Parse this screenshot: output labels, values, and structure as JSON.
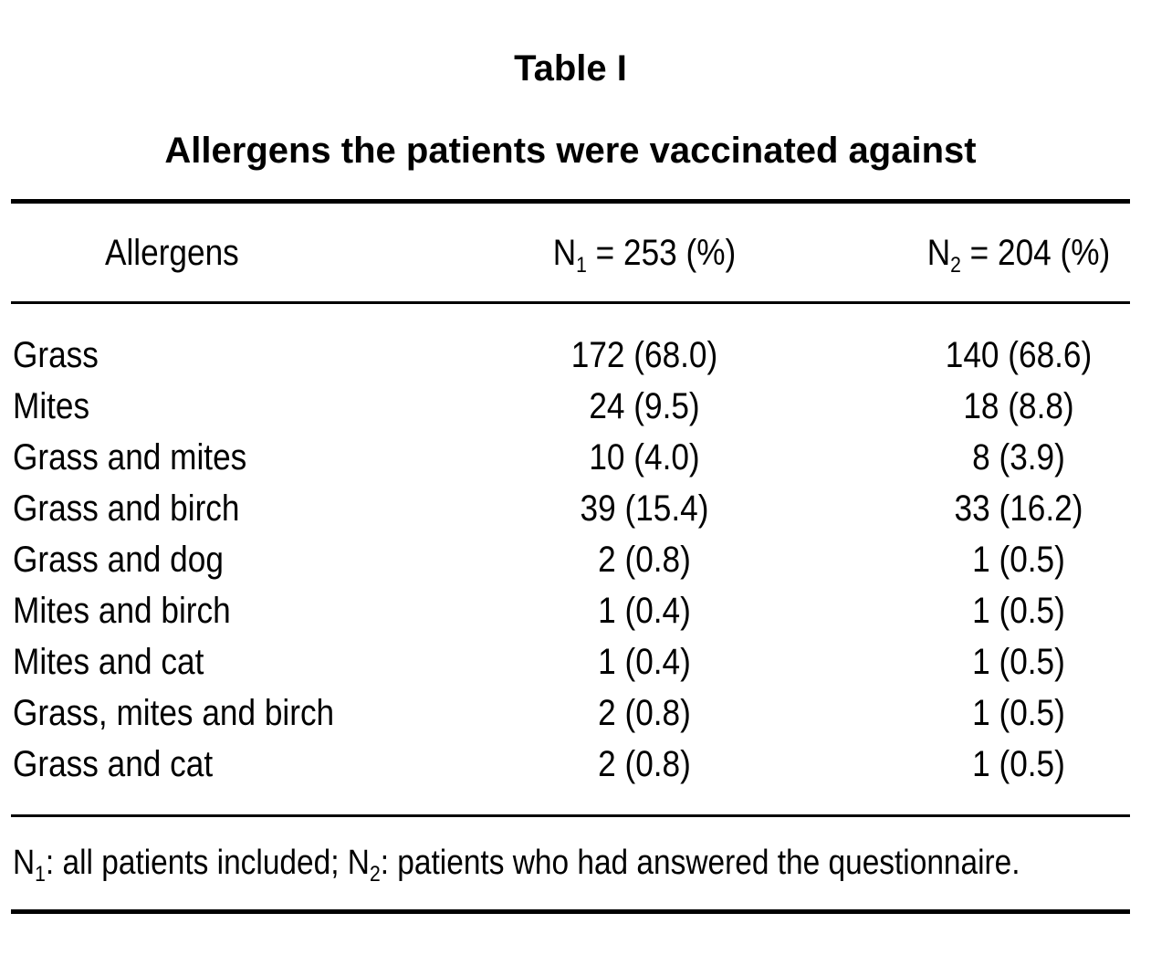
{
  "table": {
    "label": "Table I",
    "caption": "Allergens the patients were vaccinated against",
    "headers": {
      "allergens": "Allergens",
      "n1_letter": "N",
      "n1_sub": "1",
      "n1_rest": " = 253 (%)",
      "n2_letter": "N",
      "n2_sub": "2",
      "n2_rest": " = 204 (%)"
    },
    "rows": [
      {
        "allergen": "Grass",
        "n1": "172 (68.0)",
        "n2": "140 (68.6)"
      },
      {
        "allergen": "Mites",
        "n1": "24 (9.5)",
        "n2": "18 (8.8)"
      },
      {
        "allergen": "Grass and mites",
        "n1": "10 (4.0)",
        "n2": "8 (3.9)"
      },
      {
        "allergen": "Grass and birch",
        "n1": "39 (15.4)",
        "n2": "33 (16.2)"
      },
      {
        "allergen": "Grass and dog",
        "n1": "2 (0.8)",
        "n2": "1 (0.5)"
      },
      {
        "allergen": "Mites and birch",
        "n1": "1 (0.4)",
        "n2": "1 (0.5)"
      },
      {
        "allergen": "Mites and cat",
        "n1": "1 (0.4)",
        "n2": "1 (0.5)"
      },
      {
        "allergen": "Grass, mites and birch",
        "n1": "2 (0.8)",
        "n2": "1 (0.5)"
      },
      {
        "allergen": "Grass and cat",
        "n1": "2 (0.8)",
        "n2": "1 (0.5)"
      }
    ],
    "footnote": {
      "n1_letter": "N",
      "n1_sub": "1",
      "n1_text": ": all patients included; ",
      "n2_letter": "N",
      "n2_sub": "2",
      "n2_text": ": patients who had answered the questionnaire."
    }
  }
}
